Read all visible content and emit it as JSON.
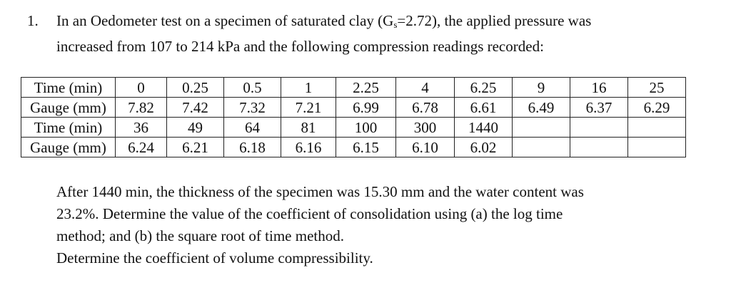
{
  "question": {
    "number": "1.",
    "intro_line1_pre": "In an Oedometer test on a specimen of saturated clay (G",
    "intro_sub": "s",
    "intro_line1_post": "=2.72), the applied pressure was",
    "intro_line2": "increased from 107 to 214 kPa and the following compression readings recorded:"
  },
  "table": {
    "rows": [
      {
        "label": "Time (min)",
        "cells": [
          "0",
          "0.25",
          "0.5",
          "1",
          "2.25",
          "4",
          "6.25",
          "9",
          "16",
          "25"
        ]
      },
      {
        "label": "Gauge (mm)",
        "cells": [
          "7.82",
          "7.42",
          "7.32",
          "7.21",
          "6.99",
          "6.78",
          "6.61",
          "6.49",
          "6.37",
          "6.29"
        ]
      },
      {
        "label": "Time (min)",
        "cells": [
          "36",
          "49",
          "64",
          "81",
          "100",
          "300",
          "1440",
          "",
          "",
          ""
        ]
      },
      {
        "label": "Gauge (mm)",
        "cells": [
          "6.24",
          "6.21",
          "6.18",
          "6.16",
          "6.15",
          "6.10",
          "6.02",
          "",
          "",
          ""
        ]
      }
    ]
  },
  "after_text": {
    "line1": "After 1440 min, the thickness of the specimen was 15.30 mm and the water content was",
    "line2": "23.2%. Determine the value of the coefficient of consolidation using (a) the log time",
    "line3": "method; and (b) the square root of time method.",
    "line4": "Determine the coefficient of volume compressibility."
  }
}
